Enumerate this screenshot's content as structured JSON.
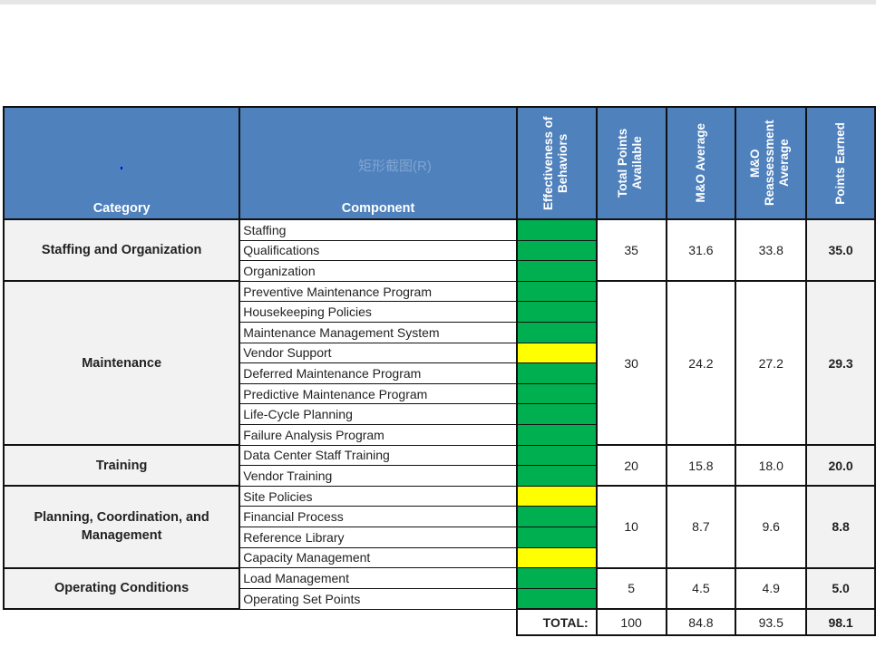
{
  "headers": {
    "category": "Category",
    "component": "Component",
    "effectiveness": "Effectiveness of Behaviors",
    "total_points": "Total Points Available",
    "mo_average": "M&O Average",
    "mo_reassessment": "M&O Reassessment Average",
    "points_earned": "Points Earned"
  },
  "watermark": "矩形截图(R)",
  "colors": {
    "green": "#00b050",
    "yellow": "#ffff00",
    "header": "#4f81bd"
  },
  "categories": [
    {
      "name": "Staffing and Organization",
      "total_points": "35",
      "mo_average": "31.6",
      "mo_reassessment": "33.8",
      "points_earned": "35.0",
      "components": [
        {
          "name": "Staffing",
          "status": "green"
        },
        {
          "name": "Qualifications",
          "status": "green"
        },
        {
          "name": "Organization",
          "status": "green"
        }
      ]
    },
    {
      "name": "Maintenance",
      "total_points": "30",
      "mo_average": "24.2",
      "mo_reassessment": "27.2",
      "points_earned": "29.3",
      "components": [
        {
          "name": "Preventive Maintenance Program",
          "status": "green"
        },
        {
          "name": "Housekeeping Policies",
          "status": "green"
        },
        {
          "name": "Maintenance Management System",
          "status": "green"
        },
        {
          "name": "Vendor Support",
          "status": "yellow"
        },
        {
          "name": "Deferred Maintenance Program",
          "status": "green"
        },
        {
          "name": "Predictive Maintenance Program",
          "status": "green"
        },
        {
          "name": "Life-Cycle Planning",
          "status": "green"
        },
        {
          "name": "Failure Analysis Program",
          "status": "green"
        }
      ]
    },
    {
      "name": "Training",
      "total_points": "20",
      "mo_average": "15.8",
      "mo_reassessment": "18.0",
      "points_earned": "20.0",
      "components": [
        {
          "name": "Data Center Staff Training",
          "status": "green"
        },
        {
          "name": "Vendor Training",
          "status": "green"
        }
      ]
    },
    {
      "name": "Planning, Coordination, and Management",
      "total_points": "10",
      "mo_average": "8.7",
      "mo_reassessment": "9.6",
      "points_earned": "8.8",
      "components": [
        {
          "name": "Site Policies",
          "status": "yellow"
        },
        {
          "name": "Financial Process",
          "status": "green"
        },
        {
          "name": "Reference Library",
          "status": "green"
        },
        {
          "name": "Capacity Management",
          "status": "yellow"
        }
      ]
    },
    {
      "name": "Operating Conditions",
      "total_points": "5",
      "mo_average": "4.5",
      "mo_reassessment": "4.9",
      "points_earned": "5.0",
      "components": [
        {
          "name": "Load Management",
          "status": "green"
        },
        {
          "name": "Operating Set Points",
          "status": "green"
        }
      ]
    }
  ],
  "total": {
    "label": "TOTAL:",
    "total_points": "100",
    "mo_average": "84.8",
    "mo_reassessment": "93.5",
    "points_earned": "98.1"
  }
}
